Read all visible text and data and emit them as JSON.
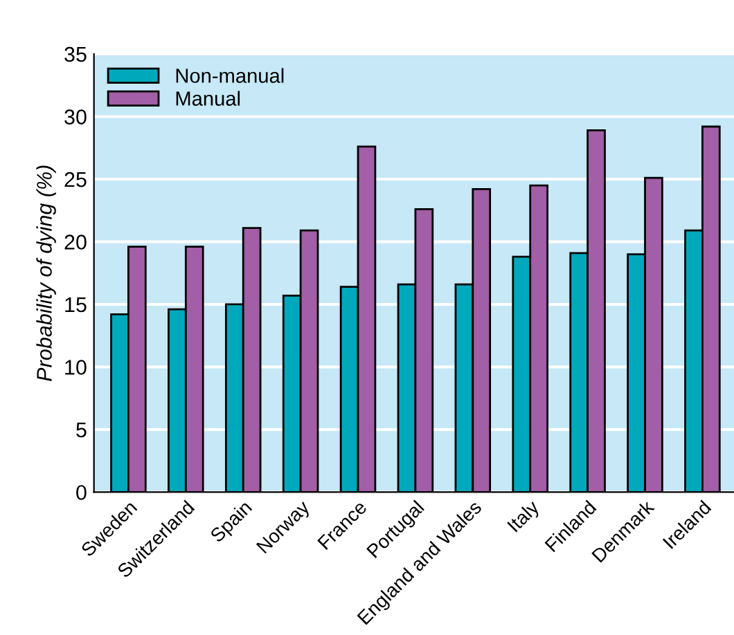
{
  "chart_data": {
    "type": "bar",
    "ylabel": "Probability of dying (%)",
    "categories": [
      "Sweden",
      "Switzerland",
      "Spain",
      "Norway",
      "France",
      "Portugal",
      "England and Wales",
      "Italy",
      "Finland",
      "Denmark",
      "Ireland"
    ],
    "series": [
      {
        "name": "Non-manual",
        "color": "#00a8bc",
        "values": [
          14.2,
          14.6,
          15.0,
          15.7,
          16.4,
          16.6,
          16.6,
          18.8,
          19.1,
          19.0,
          20.9
        ]
      },
      {
        "name": "Manual",
        "color": "#a25ea6",
        "values": [
          19.6,
          19.6,
          21.1,
          20.9,
          27.6,
          22.6,
          24.2,
          24.5,
          28.9,
          25.1,
          29.2
        ]
      }
    ],
    "ylim": [
      0,
      35
    ],
    "yticks": [
      0,
      5,
      10,
      15,
      20,
      25,
      30,
      35
    ],
    "grid": "y",
    "legend": "top left"
  }
}
